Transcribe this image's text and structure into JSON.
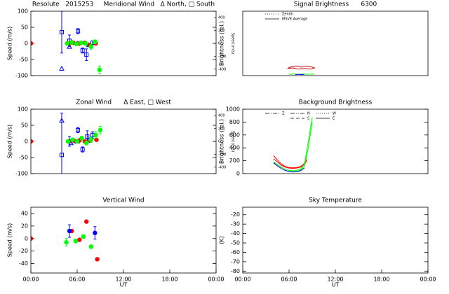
{
  "chart_data": [
    {
      "type": "scatter",
      "title": "Resolute   2015253     Meridional Wind   Δ North, □ South",
      "ylabel": "Speed (m/s)",
      "y2label": "Speed (m/s)",
      "xlim": [
        0,
        24
      ],
      "ylim": [
        -100,
        100
      ],
      "yticks": [
        -100,
        -50,
        0,
        50,
        100
      ],
      "y2lim": [
        -500,
        500
      ],
      "y2ticks": [
        -400,
        -200,
        0,
        200,
        400
      ],
      "series": [
        {
          "color": "#0000ff",
          "marker": "square",
          "x": [
            4.0,
            5.0,
            6.1,
            6.7,
            7.2,
            8.0
          ],
          "values": [
            35,
            8,
            38,
            -22,
            -35,
            2
          ],
          "errors": [
            65,
            18,
            8,
            8,
            18,
            6
          ]
        },
        {
          "color": "#0000ff",
          "marker": "triangle",
          "x": [
            4.0,
            5.0,
            6.0,
            7.5
          ],
          "values": [
            -78,
            -10,
            0,
            -5
          ]
        },
        {
          "color": "#ff0000",
          "marker": "circle",
          "x": [
            0,
            5.0,
            5.5,
            6.3,
            7.0,
            7.6,
            8.4
          ],
          "values": [
            0,
            0,
            2,
            0,
            2,
            -5,
            0
          ]
        },
        {
          "color": "#00ff00",
          "marker": "circle",
          "x": [
            4.7,
            5.3,
            5.9,
            6.5,
            7.1,
            7.8,
            8.3,
            8.9
          ],
          "values": [
            0,
            3,
            -2,
            2,
            0,
            -10,
            5,
            -82
          ],
          "errors": [
            5,
            6,
            5,
            5,
            6,
            8,
            6,
            12
          ]
        }
      ]
    },
    {
      "type": "line",
      "title": "Signal Brightness      6300",
      "ylabel": "Brightness (rel.)",
      "xlim": [
        0,
        24
      ],
      "ylim": [
        0,
        100
      ],
      "legend": [
        {
          "name": "Zenith",
          "dash": "1,2"
        },
        {
          "name": "MSVE Average",
          "dash": ""
        }
      ],
      "series": [
        {
          "color": "#cc0000",
          "x": [
            5.8,
            6.3,
            7.0,
            7.6,
            8.2,
            8.8,
            9.3,
            8.8,
            8.0,
            7.2,
            6.5,
            5.8
          ],
          "values": [
            11,
            14,
            15,
            13,
            15,
            14,
            12,
            10,
            11,
            10,
            12,
            11
          ]
        },
        {
          "color": "#00ff00",
          "x": [
            6.0,
            6.6,
            7.2,
            7.8,
            8.4,
            9.0,
            9.3
          ],
          "values": [
            2,
            2.5,
            2,
            2.5,
            2,
            2.5,
            2
          ]
        },
        {
          "color": "#0000ff",
          "x": [
            6.8,
            7.2,
            7.6,
            8.0
          ],
          "values": [
            1.5,
            2,
            1.5,
            2
          ]
        }
      ]
    },
    {
      "type": "scatter",
      "title": "Zonal Wind      Δ East, □ West",
      "ylabel": "Speed (m/s)",
      "y2label": "Speed (m/s)",
      "xlim": [
        0,
        24
      ],
      "ylim": [
        -100,
        100
      ],
      "yticks": [
        -100,
        -50,
        0,
        50,
        100
      ],
      "y2lim": [
        -500,
        500
      ],
      "y2ticks": [
        -400,
        -200,
        0,
        200,
        400
      ],
      "series": [
        {
          "color": "#0000ff",
          "marker": "square",
          "x": [
            4.0,
            5.0,
            6.1,
            6.7,
            7.3,
            8.0
          ],
          "values": [
            -42,
            0,
            35,
            -25,
            15,
            20
          ],
          "errors": [
            130,
            15,
            8,
            8,
            18,
            10
          ]
        },
        {
          "color": "#0000ff",
          "marker": "triangle",
          "x": [
            4.0,
            5.2,
            6.0,
            7.5
          ],
          "values": [
            65,
            -5,
            0,
            5
          ]
        },
        {
          "color": "#ff0000",
          "marker": "circle",
          "x": [
            0,
            4.9,
            5.6,
            6.3,
            7.0,
            7.7,
            8.5
          ],
          "values": [
            0,
            0,
            2,
            3,
            0,
            2,
            5
          ]
        },
        {
          "color": "#00ff00",
          "marker": "circle",
          "x": [
            4.8,
            5.4,
            6.0,
            6.6,
            7.2,
            7.8,
            8.4,
            9.0
          ],
          "values": [
            0,
            5,
            0,
            10,
            -5,
            5,
            20,
            35
          ],
          "errors": [
            5,
            6,
            5,
            6,
            6,
            8,
            10,
            12
          ]
        }
      ]
    },
    {
      "type": "line",
      "title": "Background Brightness",
      "ylabel": "Brightness (rel.)",
      "xlim": [
        0,
        24
      ],
      "ylim": [
        0,
        1000
      ],
      "yticks": [
        0,
        200,
        400,
        600,
        800,
        1000
      ],
      "legend": [
        {
          "name": "Z",
          "dash": "6,2,1,2"
        },
        {
          "name": "N",
          "dash": "6,2,1,2,1,2"
        },
        {
          "name": "S",
          "dash": "5,3"
        },
        {
          "name": "W",
          "dash": "1,2"
        },
        {
          "name": "E",
          "dash": ""
        }
      ],
      "series": [
        {
          "color": "#ff0000",
          "x": [
            4.0,
            4.5,
            5.0,
            5.5,
            6.0,
            6.5,
            7.0,
            7.5,
            8.0,
            8.3
          ],
          "values": [
            280,
            210,
            150,
            110,
            95,
            90,
            95,
            110,
            160,
            220
          ]
        },
        {
          "color": "#ff0000",
          "x": [
            4.0,
            4.5,
            5.0,
            5.5,
            6.0,
            6.5,
            7.0,
            7.5,
            8.0,
            8.3
          ],
          "values": [
            230,
            180,
            130,
            100,
            85,
            80,
            85,
            100,
            140,
            200
          ]
        },
        {
          "color": "#00ff00",
          "x": [
            4.0,
            4.5,
            5.0,
            5.5,
            6.0,
            6.5,
            7.0,
            7.5,
            8.0,
            8.5,
            9.0
          ],
          "values": [
            180,
            140,
            100,
            70,
            50,
            45,
            50,
            70,
            150,
            500,
            870
          ]
        },
        {
          "color": "#00ff00",
          "x": [
            4.0,
            4.5,
            5.0,
            5.5,
            6.0,
            6.5,
            7.0,
            7.5,
            8.0,
            8.5,
            9.0
          ],
          "values": [
            160,
            120,
            80,
            50,
            35,
            30,
            35,
            55,
            120,
            400,
            800
          ]
        },
        {
          "color": "#0000ff",
          "x": [
            4.0,
            4.5,
            5.0,
            5.5,
            6.0,
            6.5,
            7.0,
            7.5,
            8.0
          ],
          "values": [
            170,
            120,
            80,
            50,
            30,
            25,
            30,
            45,
            90
          ]
        }
      ]
    },
    {
      "type": "scatter",
      "title": "Vertical Wind",
      "ylabel": "Speed (m/s)",
      "xlabel": "UT",
      "xlim": [
        0,
        24
      ],
      "xticks": [
        {
          "value": 0,
          "label": "00:00"
        },
        {
          "value": 6,
          "label": "06:00"
        },
        {
          "value": 12,
          "label": "12:00"
        },
        {
          "value": 18,
          "label": "18:00"
        },
        {
          "value": 24,
          "label": "00:00"
        }
      ],
      "ylim": [
        -55,
        50
      ],
      "yticks": [
        -40,
        -20,
        0,
        20,
        40
      ],
      "series": [
        {
          "color": "#ff0000",
          "marker": "circle",
          "x": [
            0,
            5.3,
            6.3,
            7.2,
            8.6
          ],
          "values": [
            0,
            12,
            -2,
            27,
            -33
          ]
        },
        {
          "color": "#0000ff",
          "marker": "circle",
          "x": [
            5.0,
            8.3
          ],
          "values": [
            12,
            9
          ],
          "errors": [
            10,
            10
          ]
        },
        {
          "color": "#00ff00",
          "marker": "circle",
          "x": [
            4.6,
            5.8,
            6.8,
            7.8
          ],
          "values": [
            -6,
            -4,
            3,
            -13
          ],
          "errors": [
            6,
            3,
            3,
            3
          ]
        }
      ]
    },
    {
      "type": "scatter",
      "title": "Sky Temperature",
      "ylabel": "(K)",
      "xlabel": "UT",
      "xlim": [
        0,
        24
      ],
      "xticks": [
        {
          "value": 0,
          "label": "00:00"
        },
        {
          "value": 6,
          "label": "06:00"
        },
        {
          "value": 12,
          "label": "12:00"
        },
        {
          "value": 18,
          "label": "18:00"
        },
        {
          "value": 24,
          "label": "00:00"
        }
      ],
      "ylim": [
        -82,
        -12
      ],
      "yticks": [
        -80,
        -70,
        -60,
        -50,
        -40,
        -30,
        -20
      ],
      "series": []
    }
  ]
}
